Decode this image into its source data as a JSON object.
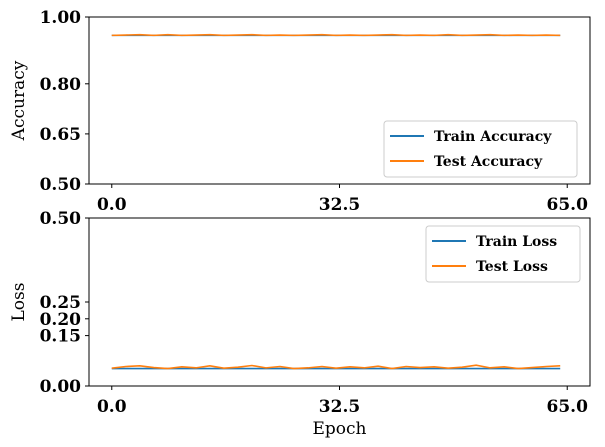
{
  "chart_data": [
    {
      "type": "line",
      "title": "",
      "xlabel": "",
      "ylabel": "Accuracy",
      "xlim": [
        -3.25,
        68.25
      ],
      "ylim": [
        0.5,
        1.0
      ],
      "xticks": [
        0.0,
        32.5,
        65.0
      ],
      "xtick_labels": [
        "0.0",
        "32.5",
        "65.0"
      ],
      "yticks": [
        0.5,
        0.65,
        0.8,
        1.0
      ],
      "ytick_labels": [
        "0.50",
        "0.65",
        "0.80",
        "1.00"
      ],
      "legend_position": "lower right",
      "grid": false,
      "x": [
        0,
        2,
        4,
        6,
        8,
        10,
        12,
        14,
        16,
        18,
        20,
        22,
        24,
        26,
        28,
        30,
        32,
        34,
        36,
        38,
        40,
        42,
        44,
        46,
        48,
        50,
        52,
        54,
        56,
        58,
        60,
        62,
        64
      ],
      "series": [
        {
          "name": "Train Accuracy",
          "color": "#1f77b4",
          "values": [
            0.945,
            0.945,
            0.945,
            0.945,
            0.945,
            0.945,
            0.945,
            0.945,
            0.945,
            0.945,
            0.945,
            0.945,
            0.945,
            0.945,
            0.945,
            0.945,
            0.945,
            0.945,
            0.945,
            0.945,
            0.945,
            0.945,
            0.945,
            0.945,
            0.945,
            0.945,
            0.945,
            0.945,
            0.945,
            0.945,
            0.945,
            0.945,
            0.945
          ]
        },
        {
          "name": "Test Accuracy",
          "color": "#ff7f0e",
          "values": [
            0.945,
            0.946,
            0.947,
            0.945,
            0.947,
            0.945,
            0.946,
            0.947,
            0.945,
            0.946,
            0.947,
            0.945,
            0.946,
            0.945,
            0.946,
            0.947,
            0.945,
            0.946,
            0.945,
            0.946,
            0.947,
            0.945,
            0.946,
            0.945,
            0.947,
            0.945,
            0.946,
            0.947,
            0.945,
            0.946,
            0.945,
            0.946,
            0.945
          ]
        }
      ]
    },
    {
      "type": "line",
      "title": "",
      "xlabel": "Epoch",
      "ylabel": "Loss",
      "xlim": [
        -3.25,
        68.25
      ],
      "ylim": [
        0.0,
        0.5
      ],
      "xticks": [
        0.0,
        32.5,
        65.0
      ],
      "xtick_labels": [
        "0.0",
        "32.5",
        "65.0"
      ],
      "yticks": [
        0.0,
        0.15,
        0.2,
        0.25,
        0.5
      ],
      "ytick_labels": [
        "0.00",
        "0.15",
        "0.20",
        "0.25",
        "0.50"
      ],
      "legend_position": "upper right",
      "grid": false,
      "x": [
        0,
        2,
        4,
        6,
        8,
        10,
        12,
        14,
        16,
        18,
        20,
        22,
        24,
        26,
        28,
        30,
        32,
        34,
        36,
        38,
        40,
        42,
        44,
        46,
        48,
        50,
        52,
        54,
        56,
        58,
        60,
        62,
        64
      ],
      "series": [
        {
          "name": "Train Loss",
          "color": "#1f77b4",
          "values": [
            0.052,
            0.052,
            0.052,
            0.052,
            0.052,
            0.052,
            0.052,
            0.052,
            0.052,
            0.052,
            0.052,
            0.052,
            0.052,
            0.052,
            0.052,
            0.052,
            0.052,
            0.052,
            0.052,
            0.052,
            0.052,
            0.052,
            0.052,
            0.052,
            0.052,
            0.052,
            0.052,
            0.052,
            0.052,
            0.052,
            0.052,
            0.052,
            0.052
          ]
        },
        {
          "name": "Test Loss",
          "color": "#ff7f0e",
          "values": [
            0.053,
            0.058,
            0.06,
            0.055,
            0.052,
            0.057,
            0.054,
            0.06,
            0.053,
            0.056,
            0.061,
            0.054,
            0.058,
            0.052,
            0.054,
            0.058,
            0.053,
            0.057,
            0.054,
            0.059,
            0.052,
            0.058,
            0.055,
            0.057,
            0.053,
            0.056,
            0.062,
            0.054,
            0.057,
            0.052,
            0.055,
            0.058,
            0.06
          ]
        }
      ]
    }
  ]
}
